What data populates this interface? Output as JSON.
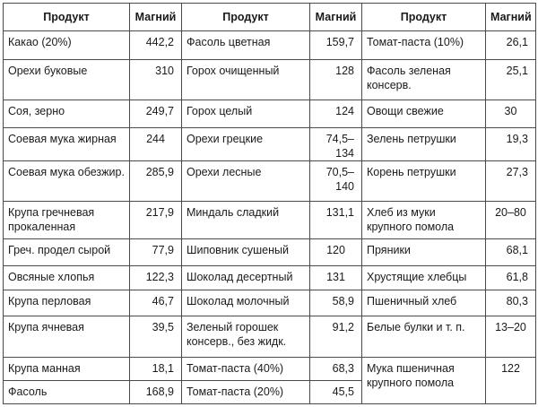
{
  "headers": [
    "Продукт",
    "Магний",
    "Продукт",
    "Магний",
    "Продукт",
    "Магний"
  ],
  "rows": [
    [
      {
        "product": "Какао (20%)",
        "value": "442,2"
      },
      {
        "product": "Фасоль цветная",
        "value": "159,7"
      },
      {
        "product": "Томат-паста (10%)",
        "value": "26,1"
      }
    ],
    [
      {
        "product": "Орехи буковые",
        "value": "310"
      },
      {
        "product": "Горох очищенный",
        "value": "128"
      },
      {
        "product": "Фасоль зеленая консерв.",
        "value": "25,1"
      }
    ],
    [
      {
        "product": "Соя, зерно",
        "value": "249,7"
      },
      {
        "product": "Горох целый",
        "value": "124"
      },
      {
        "product": "Овощи свежие",
        "value": "30"
      }
    ],
    [
      {
        "product": "Соевая мука жирная",
        "value": "244"
      },
      {
        "product": "Орехи грецкие",
        "value": "74,5–134"
      },
      {
        "product": "Зелень петрушки",
        "value": "19,3"
      }
    ],
    [
      {
        "product": "Соевая мука обезжир.",
        "value": "285,9"
      },
      {
        "product": "Орехи лесные",
        "value": "70,5–140"
      },
      {
        "product": "Корень петрушки",
        "value": "27,3"
      }
    ],
    [
      {
        "product": "Крупа гречневая прокаленная",
        "value": "217,9"
      },
      {
        "product": "Миндаль сладкий",
        "value": "131,1"
      },
      {
        "product": "Хлеб из муки крупного помола",
        "value": "20–80"
      }
    ],
    [
      {
        "product": "Греч. продел сырой",
        "value": "77,9"
      },
      {
        "product": "Шиповник сушеный",
        "value": "120"
      },
      {
        "product": "Пряники",
        "value": "68,1"
      }
    ],
    [
      {
        "product": "Овсяные хлопья",
        "value": "122,3"
      },
      {
        "product": "Шоколад десертный",
        "value": "131"
      },
      {
        "product": "Хрустящие хлебцы",
        "value": "61,8"
      }
    ],
    [
      {
        "product": "Крупа перловая",
        "value": "46,7"
      },
      {
        "product": "Шоколад молочный",
        "value": "58,9"
      },
      {
        "product": "Пшеничный хлеб",
        "value": "80,3"
      }
    ],
    [
      {
        "product": "Крупа ячневая",
        "value": "39,5"
      },
      {
        "product": "Зеленый горошек консерв., без жидк.",
        "value": "91,2"
      },
      {
        "product": "Белые булки и т. п.",
        "value": "13–20"
      }
    ],
    [
      {
        "product": "Крупа манная",
        "value": "18,1"
      },
      {
        "product": "Томат-паста (40%)",
        "value": "68,3"
      },
      {
        "product": "Мука пшеничная крупного помола",
        "value": "122"
      }
    ],
    [
      {
        "product": "Фасоль",
        "value": "168,9"
      },
      {
        "product": "Томат-паста (20%)",
        "value": "45,5"
      }
    ]
  ]
}
